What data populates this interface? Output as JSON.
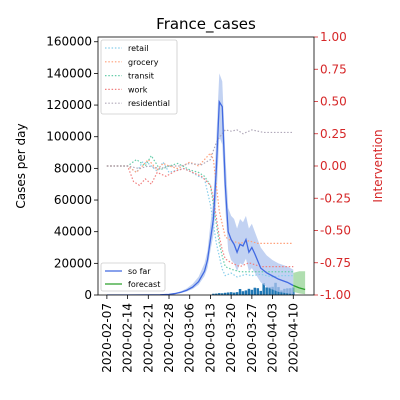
{
  "chart_data": {
    "type": "line",
    "title": "France_cases",
    "ylabel": "Cases per day",
    "y2label": "Intervention",
    "x_ticks": [
      "2020-02-07",
      "2020-02-14",
      "2020-02-21",
      "2020-02-28",
      "2020-03-06",
      "2020-03-13",
      "2020-03-20",
      "2020-03-27",
      "2020-04-03",
      "2020-04-10"
    ],
    "ylim": [
      0,
      163000
    ],
    "y_ticks": [
      0,
      20000,
      40000,
      60000,
      80000,
      100000,
      120000,
      140000,
      160000
    ],
    "y2lim": [
      -1.0,
      1.0
    ],
    "y2_ticks": [
      "-1.00",
      "-0.75",
      "-0.50",
      "-0.25",
      "0.00",
      "0.25",
      "0.50",
      "0.75",
      "1.00"
    ],
    "legend_top": [
      "retail",
      "grocery",
      "transit",
      "work",
      "residential"
    ],
    "legend_bottom": [
      "so far",
      "forecast"
    ],
    "colors": {
      "so_far": "#4169e1",
      "so_far_band": "#aec3ee",
      "forecast": "#2ca02c",
      "forecast_band": "#8fd08f",
      "bars": "#1f77b4",
      "retail": "#87ceeb",
      "grocery": "#ffa07a",
      "transit": "#66cdaa",
      "work": "#f08080",
      "residential": "#b0a8b9",
      "right_axis": "#d62728"
    },
    "series": [
      {
        "name": "so far",
        "x": [
          "2020-02-07",
          "2020-02-14",
          "2020-02-21",
          "2020-02-25",
          "2020-02-28",
          "2020-03-01",
          "2020-03-03",
          "2020-03-05",
          "2020-03-07",
          "2020-03-09",
          "2020-03-11",
          "2020-03-12",
          "2020-03-13",
          "2020-03-14",
          "2020-03-15",
          "2020-03-16",
          "2020-03-17",
          "2020-03-18",
          "2020-03-19",
          "2020-03-20",
          "2020-03-21",
          "2020-03-22",
          "2020-03-23",
          "2020-03-24",
          "2020-03-25",
          "2020-03-26",
          "2020-03-27",
          "2020-03-28",
          "2020-03-30",
          "2020-04-01",
          "2020-04-03",
          "2020-04-05",
          "2020-04-08",
          "2020-04-10"
        ],
        "values": [
          0,
          0,
          50,
          150,
          400,
          900,
          1700,
          3000,
          5000,
          8500,
          15000,
          22000,
          35000,
          48000,
          80000,
          122000,
          119000,
          70000,
          40000,
          35000,
          32000,
          27000,
          32000,
          31000,
          35000,
          27000,
          30000,
          26000,
          17000,
          14000,
          12000,
          10000,
          8000,
          6000
        ],
        "band_lower": [
          0,
          0,
          30,
          100,
          250,
          600,
          1200,
          2200,
          3800,
          6500,
          12000,
          17000,
          28000,
          38000,
          60000,
          100000,
          95000,
          55000,
          28000,
          22000,
          20000,
          15000,
          20000,
          19000,
          23000,
          15000,
          17000,
          14000,
          8000,
          5000,
          3500,
          2000,
          1000,
          500
        ],
        "band_upper": [
          0,
          0,
          80,
          220,
          600,
          1300,
          2400,
          4200,
          7000,
          11500,
          20000,
          28000,
          45000,
          60000,
          100000,
          140000,
          135000,
          90000,
          55000,
          50000,
          48000,
          42000,
          48000,
          46000,
          50000,
          42000,
          45000,
          40000,
          30000,
          25000,
          22000,
          20000,
          18000,
          16000
        ]
      },
      {
        "name": "forecast",
        "x": [
          "2020-04-10",
          "2020-04-12",
          "2020-04-14"
        ],
        "values": [
          6000,
          4500,
          3500
        ],
        "band_lower": [
          2000,
          1000,
          500
        ],
        "band_upper": [
          14000,
          15000,
          15000
        ]
      }
    ],
    "daily_bars": {
      "x": [
        "2020-03-14",
        "2020-03-15",
        "2020-03-16",
        "2020-03-17",
        "2020-03-18",
        "2020-03-19",
        "2020-03-20",
        "2020-03-21",
        "2020-03-22",
        "2020-03-23",
        "2020-03-24",
        "2020-03-25",
        "2020-03-26",
        "2020-03-27",
        "2020-03-28",
        "2020-03-29",
        "2020-03-30",
        "2020-03-31",
        "2020-04-01",
        "2020-04-02",
        "2020-04-03",
        "2020-04-04",
        "2020-04-05",
        "2020-04-06",
        "2020-04-07",
        "2020-04-08",
        "2020-04-09",
        "2020-04-10"
      ],
      "values": [
        800,
        900,
        1200,
        1100,
        1400,
        1600,
        1800,
        1500,
        1800,
        3800,
        2400,
        2900,
        3900,
        3300,
        4600,
        4300,
        2600,
        7500,
        4800,
        4900,
        5200,
        7700,
        5000,
        2900,
        3900,
        4200,
        4300,
        4800
      ]
    },
    "interventions": [
      {
        "name": "retail",
        "x": [
          "2020-02-07",
          "2020-02-14",
          "2020-02-17",
          "2020-02-19",
          "2020-02-21",
          "2020-02-24",
          "2020-02-26",
          "2020-02-28",
          "2020-03-02",
          "2020-03-04",
          "2020-03-06",
          "2020-03-09",
          "2020-03-11",
          "2020-03-13",
          "2020-03-14",
          "2020-03-15",
          "2020-03-16",
          "2020-03-17",
          "2020-03-18",
          "2020-03-20",
          "2020-03-22",
          "2020-03-25",
          "2020-03-27",
          "2020-03-30",
          "2020-04-03",
          "2020-04-06",
          "2020-04-10"
        ],
        "values": [
          0.0,
          0.0,
          -0.05,
          0.03,
          0.02,
          -0.04,
          0.03,
          -0.05,
          -0.03,
          -0.02,
          -0.04,
          -0.08,
          -0.1,
          -0.3,
          -0.45,
          -0.6,
          -0.7,
          -0.8,
          -0.85,
          -0.83,
          -0.86,
          -0.84,
          -0.85,
          -0.84,
          -0.86,
          -0.85,
          -0.85
        ]
      },
      {
        "name": "grocery",
        "x": [
          "2020-02-07",
          "2020-02-14",
          "2020-02-17",
          "2020-02-19",
          "2020-02-21",
          "2020-02-24",
          "2020-02-26",
          "2020-02-28",
          "2020-03-02",
          "2020-03-06",
          "2020-03-09",
          "2020-03-11",
          "2020-03-13",
          "2020-03-14",
          "2020-03-15",
          "2020-03-16",
          "2020-03-17",
          "2020-03-18",
          "2020-03-20",
          "2020-03-23",
          "2020-03-26",
          "2020-03-29",
          "2020-04-01",
          "2020-04-05",
          "2020-04-10"
        ],
        "values": [
          0.0,
          0.0,
          -0.05,
          0.0,
          0.05,
          -0.03,
          0.02,
          0.0,
          -0.02,
          0.03,
          0.0,
          0.05,
          0.1,
          0.05,
          -0.15,
          -0.35,
          -0.45,
          -0.55,
          -0.58,
          -0.6,
          -0.58,
          -0.6,
          -0.6,
          -0.6,
          -0.6
        ]
      },
      {
        "name": "transit",
        "x": [
          "2020-02-07",
          "2020-02-14",
          "2020-02-17",
          "2020-02-20",
          "2020-02-22",
          "2020-02-25",
          "2020-02-28",
          "2020-03-02",
          "2020-03-06",
          "2020-03-09",
          "2020-03-11",
          "2020-03-13",
          "2020-03-14",
          "2020-03-15",
          "2020-03-16",
          "2020-03-17",
          "2020-03-18",
          "2020-03-20",
          "2020-03-23",
          "2020-03-26",
          "2020-03-30",
          "2020-04-03",
          "2020-04-10"
        ],
        "values": [
          0.0,
          0.0,
          0.05,
          0.0,
          0.08,
          -0.03,
          0.0,
          0.02,
          -0.03,
          -0.05,
          -0.08,
          -0.15,
          -0.3,
          -0.45,
          -0.6,
          -0.7,
          -0.78,
          -0.8,
          -0.82,
          -0.82,
          -0.82,
          -0.82,
          -0.82
        ]
      },
      {
        "name": "work",
        "x": [
          "2020-02-07",
          "2020-02-14",
          "2020-02-16",
          "2020-02-18",
          "2020-02-20",
          "2020-02-22",
          "2020-02-24",
          "2020-02-27",
          "2020-03-01",
          "2020-03-04",
          "2020-03-07",
          "2020-03-10",
          "2020-03-13",
          "2020-03-14",
          "2020-03-15",
          "2020-03-16",
          "2020-03-17",
          "2020-03-18",
          "2020-03-20",
          "2020-03-23",
          "2020-03-26",
          "2020-03-30",
          "2020-04-03",
          "2020-04-06",
          "2020-04-10"
        ],
        "values": [
          0.0,
          0.0,
          -0.12,
          -0.15,
          -0.1,
          -0.14,
          -0.05,
          -0.08,
          -0.04,
          -0.02,
          -0.05,
          -0.08,
          -0.15,
          -0.25,
          -0.4,
          -0.55,
          -0.65,
          -0.72,
          -0.75,
          -0.78,
          -0.75,
          -0.78,
          -0.78,
          -0.78,
          -0.78
        ]
      },
      {
        "name": "residential",
        "x": [
          "2020-02-07",
          "2020-02-14",
          "2020-02-18",
          "2020-02-21",
          "2020-02-25",
          "2020-02-28",
          "2020-03-03",
          "2020-03-06",
          "2020-03-10",
          "2020-03-13",
          "2020-03-14",
          "2020-03-15",
          "2020-03-16",
          "2020-03-17",
          "2020-03-18",
          "2020-03-20",
          "2020-03-22",
          "2020-03-24",
          "2020-03-27",
          "2020-03-31",
          "2020-04-03",
          "2020-04-06",
          "2020-04-10"
        ],
        "values": [
          0.0,
          0.0,
          -0.02,
          0.0,
          -0.02,
          0.0,
          0.0,
          0.02,
          0.01,
          0.05,
          0.12,
          0.18,
          0.22,
          0.25,
          0.28,
          0.27,
          0.28,
          0.25,
          0.28,
          0.26,
          0.26,
          0.26,
          0.26
        ]
      }
    ]
  }
}
